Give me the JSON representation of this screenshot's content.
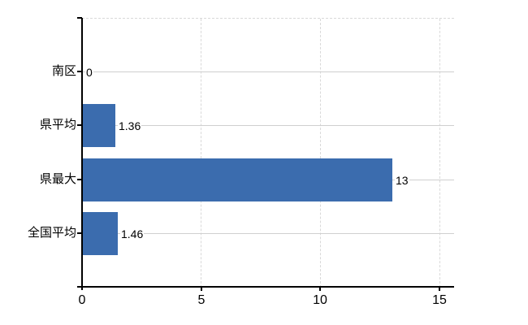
{
  "chart_data": {
    "type": "bar",
    "orientation": "horizontal",
    "title": "",
    "categories": [
      "南区",
      "県平均",
      "県最大",
      "全国平均"
    ],
    "values": [
      0,
      1.36,
      13,
      1.46
    ],
    "value_labels": [
      "0",
      "1.36",
      "13",
      "1.46"
    ],
    "x_axis": {
      "tick_labels": [
        "0",
        "5",
        "10",
        "15"
      ],
      "tick_values": [
        0,
        5,
        10,
        15
      ],
      "range": [
        0,
        15.6
      ]
    },
    "grid": {
      "vertical_gridlines": "dashed",
      "horizontal_row_lines": "solid",
      "top_border": "dashed"
    },
    "legend": "none",
    "colors": {
      "bar": "#3b6cae",
      "axis": "#000000",
      "grid_vertical": "#d9d9d9",
      "grid_horizontal": "#cfcfcf",
      "text": "#000000",
      "background": "#ffffff"
    }
  }
}
